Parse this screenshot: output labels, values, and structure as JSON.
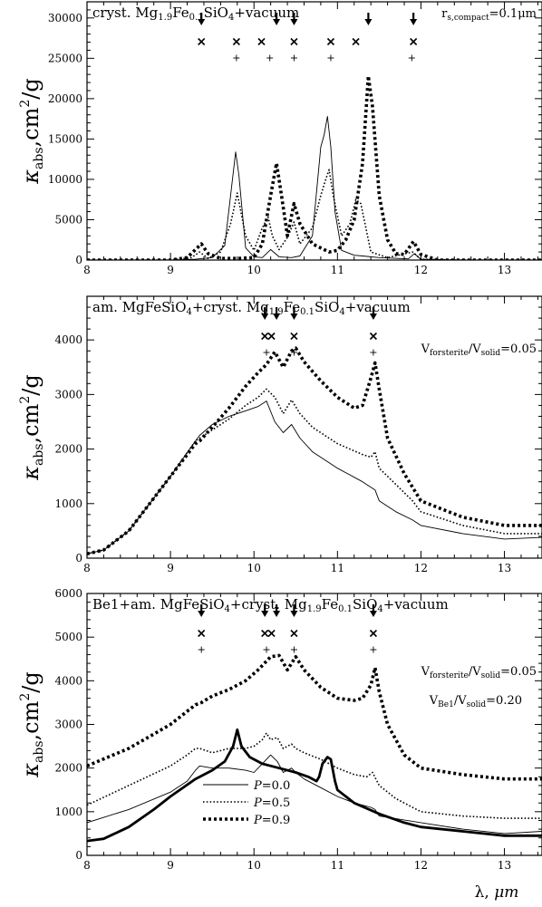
{
  "chart_data": [
    {
      "type": "line",
      "title": "cryst. Mg1.9Fe0.1SiO4+vacuum",
      "title_parts": {
        "a": "cryst. Mg",
        "s1": "1.9",
        "b": "Fe",
        "s2": "0.1",
        "c": "SiO",
        "s3": "4",
        "d": "+vacuum"
      },
      "annotation": {
        "a": "r",
        "s1": "s,compact",
        "b": "=0.1",
        "c": "μm"
      },
      "xlim": [
        8,
        13.45
      ],
      "ylim": [
        0,
        32000
      ],
      "xticks": [
        8,
        9,
        10,
        11,
        12,
        13
      ],
      "yticks": [
        0,
        5000,
        10000,
        15000,
        20000,
        25000,
        30000
      ],
      "markers": {
        "arrows": [
          9.37,
          10.27,
          10.48,
          11.37,
          11.91
        ],
        "crosses": [
          9.37,
          9.79,
          10.09,
          10.48,
          10.92,
          11.22,
          11.91
        ],
        "pluses": [
          9.79,
          10.19,
          10.48,
          10.92,
          11.89
        ]
      },
      "series": [
        {
          "name": "P=0.0",
          "style": "thin",
          "x": [
            8,
            9,
            9.3,
            9.5,
            9.65,
            9.72,
            9.78,
            9.82,
            9.9,
            10.0,
            10.1,
            10.2,
            10.3,
            10.45,
            10.55,
            10.7,
            10.8,
            10.84,
            10.88,
            10.92,
            10.97,
            11.05,
            11.2,
            11.3,
            11.5,
            11.85,
            11.92,
            12.0,
            12.5,
            13.45
          ],
          "y": [
            0,
            0,
            100,
            300,
            1800,
            8000,
            13400,
            10500,
            1500,
            400,
            300,
            1300,
            400,
            300,
            500,
            3000,
            14000,
            15500,
            17800,
            14000,
            6000,
            1200,
            600,
            500,
            300,
            150,
            800,
            100,
            0,
            0
          ]
        },
        {
          "name": "P=0.5",
          "style": "dotted",
          "x": [
            8,
            9,
            9.25,
            9.35,
            9.45,
            9.6,
            9.72,
            9.8,
            9.9,
            10.0,
            10.1,
            10.17,
            10.22,
            10.3,
            10.4,
            10.48,
            10.55,
            10.7,
            10.8,
            10.86,
            10.9,
            10.95,
            11.05,
            11.15,
            11.22,
            11.28,
            11.4,
            11.6,
            11.9,
            12.0,
            12.5,
            13.45
          ],
          "y": [
            0,
            0,
            300,
            1000,
            200,
            1000,
            4500,
            8300,
            3000,
            1200,
            4000,
            5300,
            3000,
            1300,
            2800,
            4700,
            2000,
            4000,
            8000,
            10000,
            11200,
            8000,
            3000,
            4500,
            7500,
            7000,
            1000,
            300,
            1000,
            100,
            0,
            0
          ]
        },
        {
          "name": "P=0.9",
          "style": "thick-dotted",
          "x": [
            8,
            9,
            9.2,
            9.3,
            9.37,
            9.45,
            9.6,
            9.8,
            10.0,
            10.1,
            10.2,
            10.27,
            10.33,
            10.4,
            10.48,
            10.55,
            10.7,
            10.9,
            11.0,
            11.1,
            11.2,
            11.3,
            11.37,
            11.42,
            11.5,
            11.6,
            11.7,
            11.8,
            11.91,
            12.0,
            12.2,
            13.45
          ],
          "y": [
            0,
            0,
            300,
            1300,
            2000,
            800,
            200,
            200,
            300,
            2000,
            8000,
            12000,
            8000,
            3000,
            7000,
            4500,
            2000,
            1000,
            1200,
            2500,
            5000,
            12000,
            22800,
            19000,
            8000,
            2500,
            800,
            700,
            2300,
            700,
            0,
            0
          ]
        }
      ]
    },
    {
      "type": "line",
      "title": "am. MgFeSiO4+cryst. Mg1.9Fe0.1SiO4+vacuum",
      "title_parts": {
        "a": "am. MgFeSiO",
        "s1": "4",
        "b": "+cryst. Mg",
        "s2": "1.9",
        "c": "Fe",
        "s3": "0.1",
        "d": "SiO",
        "s4": "4",
        "e": "+vacuum"
      },
      "annotation": {
        "a": "V",
        "s1": "forsterite",
        "b": "/V",
        "s2": "solid",
        "c": "=0.05"
      },
      "xlim": [
        8,
        13.45
      ],
      "ylim": [
        0,
        4800
      ],
      "xticks": [
        8,
        9,
        10,
        11,
        12,
        13
      ],
      "yticks": [
        0,
        1000,
        2000,
        3000,
        4000
      ],
      "markers": {
        "arrows": [
          10.13,
          10.27,
          10.48,
          11.43
        ],
        "crosses": [
          10.13,
          10.21,
          10.48,
          11.43
        ],
        "pluses": [
          10.15,
          10.48,
          11.43
        ]
      },
      "series": [
        {
          "name": "P=0.0",
          "style": "thin",
          "x": [
            8,
            8.2,
            8.5,
            9.0,
            9.3,
            9.35,
            9.5,
            9.7,
            9.9,
            10.05,
            10.15,
            10.25,
            10.35,
            10.45,
            10.55,
            10.7,
            11.0,
            11.3,
            11.4,
            11.45,
            11.5,
            11.7,
            11.9,
            12.0,
            12.5,
            13.0,
            13.45
          ],
          "y": [
            80,
            150,
            500,
            1500,
            2150,
            2250,
            2450,
            2600,
            2700,
            2780,
            2880,
            2500,
            2300,
            2450,
            2200,
            1950,
            1650,
            1400,
            1300,
            1250,
            1050,
            850,
            700,
            600,
            450,
            350,
            380
          ]
        },
        {
          "name": "P=0.5",
          "style": "dotted",
          "x": [
            8,
            8.2,
            8.5,
            9.0,
            9.3,
            9.35,
            9.5,
            9.7,
            9.9,
            10.05,
            10.15,
            10.25,
            10.35,
            10.45,
            10.55,
            10.7,
            11.0,
            11.3,
            11.4,
            11.45,
            11.5,
            11.7,
            11.9,
            12.0,
            12.5,
            13.0,
            13.45
          ],
          "y": [
            80,
            150,
            500,
            1500,
            2150,
            2200,
            2350,
            2550,
            2800,
            2950,
            3100,
            2950,
            2650,
            2900,
            2650,
            2400,
            2100,
            1900,
            1850,
            1950,
            1650,
            1350,
            1050,
            850,
            600,
            450,
            450
          ]
        },
        {
          "name": "P=0.9",
          "style": "thick-dotted",
          "x": [
            8,
            8.2,
            8.5,
            9.0,
            9.3,
            9.35,
            9.5,
            9.7,
            9.9,
            10.05,
            10.15,
            10.25,
            10.35,
            10.45,
            10.5,
            10.6,
            10.8,
            11.0,
            11.2,
            11.3,
            11.4,
            11.45,
            11.5,
            11.6,
            11.8,
            12.0,
            12.5,
            13.0,
            13.45
          ],
          "y": [
            80,
            150,
            500,
            1500,
            2100,
            2150,
            2400,
            2750,
            3150,
            3400,
            3550,
            3780,
            3500,
            3800,
            3850,
            3600,
            3250,
            2950,
            2750,
            2800,
            3300,
            3580,
            3100,
            2200,
            1550,
            1050,
            750,
            600,
            600
          ]
        }
      ]
    },
    {
      "type": "line",
      "title": "Be1+am. MgFeSiO4+cryst. Mg1.9Fe0.1SiO4+vacuum",
      "title_parts": {
        "a": "Be1+am. MgFeSiO",
        "s1": "4",
        "b": "+cryst. Mg",
        "s2": "1.9",
        "c": "Fe",
        "s3": "0.1",
        "d": "SiO",
        "s4": "4",
        "e": "+vacuum"
      },
      "annotation": {
        "a": "V",
        "s1": "forsterite",
        "b": "/V",
        "s2": "solid",
        "c": "=0.05"
      },
      "annotation2": {
        "a": "V",
        "s1": "Be1",
        "b": "/V",
        "s2": "solid",
        "c": "=0.20"
      },
      "xlim": [
        8,
        13.45
      ],
      "ylim": [
        0,
        6000
      ],
      "xticks": [
        8,
        9,
        10,
        11,
        12,
        13
      ],
      "yticks": [
        0,
        1000,
        2000,
        3000,
        4000,
        5000,
        6000
      ],
      "legend": {
        "prefix": "P",
        "items": [
          {
            "label": "=0.0",
            "style": "thin"
          },
          {
            "label": "=0.5",
            "style": "dotted"
          },
          {
            "label": "=0.9",
            "style": "thick-dotted"
          }
        ]
      },
      "markers": {
        "arrows": [
          9.37,
          10.13,
          10.27,
          10.48,
          11.43
        ],
        "crosses": [
          9.37,
          10.13,
          10.21,
          10.48,
          11.43
        ],
        "pluses": [
          9.37,
          10.15,
          10.48,
          11.43
        ]
      },
      "series": [
        {
          "name": "P=0.0",
          "style": "thin",
          "x": [
            8,
            8.5,
            9.0,
            9.2,
            9.3,
            9.35,
            9.5,
            9.7,
            9.9,
            10.0,
            10.1,
            10.2,
            10.28,
            10.35,
            10.45,
            10.5,
            10.6,
            10.8,
            11.0,
            11.2,
            11.3,
            11.4,
            11.45,
            11.5,
            12.0,
            12.5,
            13.0,
            13.45
          ],
          "y": [
            750,
            1050,
            1450,
            1700,
            1950,
            2050,
            2000,
            2000,
            1950,
            1900,
            2100,
            2300,
            2150,
            1900,
            2000,
            1900,
            1750,
            1550,
            1350,
            1200,
            1150,
            1100,
            1050,
            900,
            750,
            600,
            500,
            550
          ]
        },
        {
          "name": "P=0.5",
          "style": "dotted",
          "x": [
            8,
            8.5,
            9.0,
            9.2,
            9.3,
            9.35,
            9.5,
            9.7,
            9.9,
            10.0,
            10.1,
            10.15,
            10.2,
            10.28,
            10.35,
            10.45,
            10.5,
            10.6,
            10.8,
            11.0,
            11.2,
            11.35,
            11.42,
            11.5,
            11.7,
            12.0,
            12.5,
            13.0,
            13.45
          ],
          "y": [
            1150,
            1600,
            2050,
            2300,
            2450,
            2450,
            2350,
            2450,
            2450,
            2500,
            2650,
            2800,
            2650,
            2700,
            2450,
            2550,
            2450,
            2350,
            2200,
            2000,
            1850,
            1800,
            1900,
            1600,
            1300,
            1000,
            900,
            850,
            850
          ]
        },
        {
          "name": "P=0.9",
          "style": "thick-dotted",
          "x": [
            8,
            8.5,
            9.0,
            9.3,
            9.37,
            9.5,
            9.7,
            9.9,
            10.05,
            10.15,
            10.2,
            10.3,
            10.4,
            10.5,
            10.6,
            10.8,
            11.0,
            11.2,
            11.3,
            11.4,
            11.45,
            11.5,
            11.6,
            11.8,
            12.0,
            12.5,
            13.0,
            13.45
          ],
          "y": [
            2050,
            2450,
            3000,
            3450,
            3500,
            3650,
            3800,
            4000,
            4250,
            4450,
            4550,
            4580,
            4250,
            4550,
            4250,
            3850,
            3600,
            3550,
            3600,
            3900,
            4300,
            3750,
            3000,
            2300,
            2000,
            1850,
            1750,
            1750
          ]
        },
        {
          "name": "Be1",
          "style": "thick",
          "x": [
            8,
            8.2,
            8.5,
            8.8,
            9.0,
            9.3,
            9.5,
            9.65,
            9.75,
            9.8,
            9.85,
            9.95,
            10.1,
            10.3,
            10.5,
            10.65,
            10.75,
            10.78,
            10.82,
            10.88,
            10.92,
            10.97,
            11.0,
            11.2,
            11.5,
            11.8,
            12.0,
            12.5,
            13.0,
            13.45
          ],
          "y": [
            330,
            380,
            650,
            1050,
            1350,
            1750,
            1950,
            2150,
            2500,
            2880,
            2500,
            2250,
            2100,
            2000,
            1900,
            1800,
            1700,
            1800,
            2100,
            2250,
            2200,
            1700,
            1500,
            1200,
            950,
            750,
            650,
            550,
            450,
            450
          ]
        }
      ]
    }
  ],
  "ylabel": {
    "kappa": "κ",
    "sub": "abs",
    "rest": ",cm",
    "sup": "2",
    "end": "/g"
  },
  "xlabel": {
    "a": "λ, ",
    "b": "μm"
  }
}
